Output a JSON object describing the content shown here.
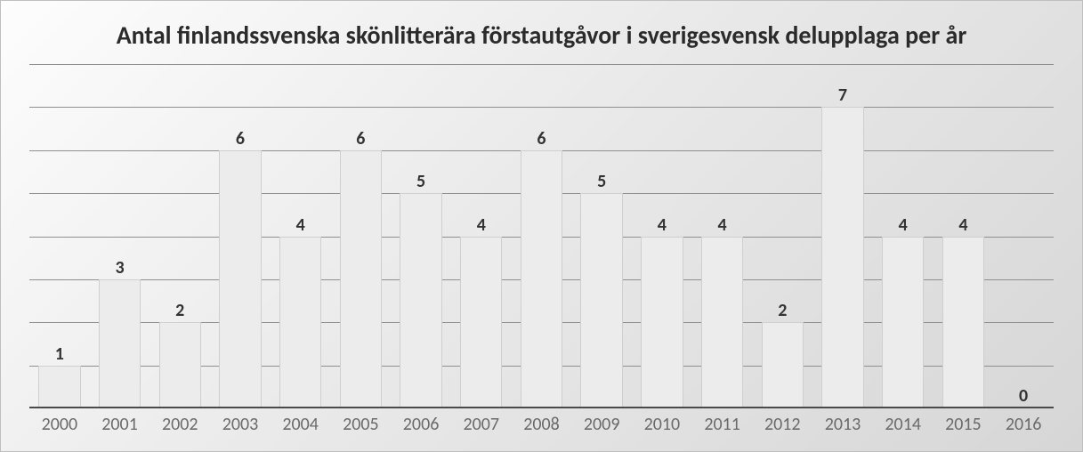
{
  "chart": {
    "type": "bar",
    "title": "Antal finlandssvenska skönlitterära förstautgåvor i sverigesvensk delupplaga per år",
    "title_fontsize": 28,
    "title_color": "#2b2b2b",
    "categories": [
      "2000",
      "2001",
      "2002",
      "2003",
      "2004",
      "2005",
      "2006",
      "2007",
      "2008",
      "2009",
      "2010",
      "2011",
      "2012",
      "2013",
      "2014",
      "2015",
      "2016"
    ],
    "values": [
      1,
      3,
      2,
      6,
      4,
      6,
      5,
      4,
      6,
      5,
      4,
      4,
      2,
      7,
      4,
      4,
      0
    ],
    "ylim": [
      0,
      8
    ],
    "ytick_step": 1,
    "bar_color": "#ececec",
    "bar_border_color": "#cfcfcf",
    "bar_width": 0.7,
    "grid_color": "#8f8f8f",
    "axis_color": "#4a4a4a",
    "background_gradient": [
      "#fdfdfd",
      "#e8e8e8",
      "#d6d6d6"
    ],
    "data_label_fontsize": 20,
    "data_label_color": "#333333",
    "xlabel_fontsize": 20,
    "xlabel_color": "#6a6a6a"
  }
}
